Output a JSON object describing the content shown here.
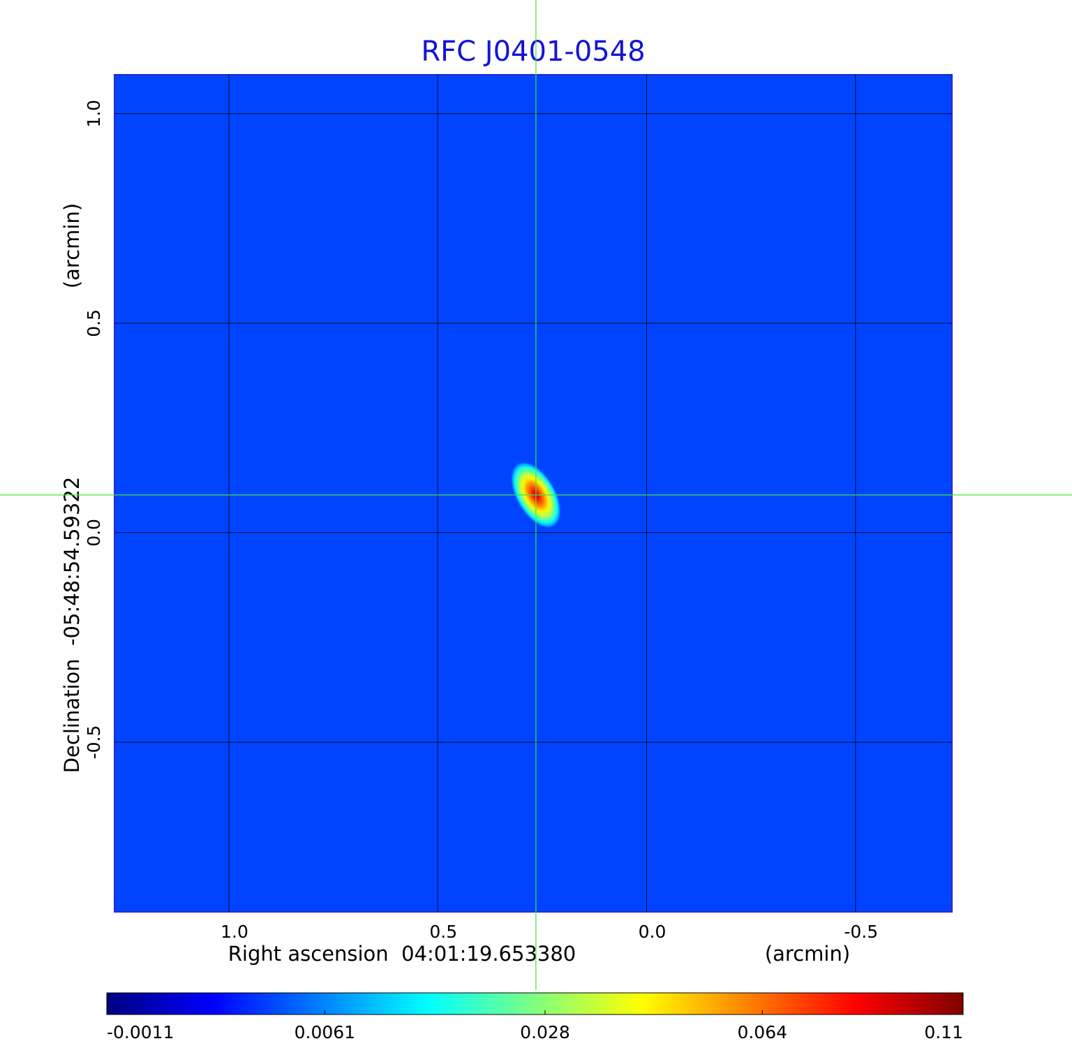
{
  "chart_data": {
    "type": "image",
    "title": "RFC J0401-0548",
    "x_label": "Right ascension  04:01:19.653380",
    "x_unit": "(arcmin)",
    "y_label": "Declination  -05:48:54.59322",
    "y_unit": "(arcmin)",
    "xlim": [
      1.274,
      -0.731
    ],
    "ylim": [
      -0.905,
      1.093
    ],
    "xticks": [
      {
        "value": 1.0,
        "label": "1.0"
      },
      0.5,
      {
        "value": 0.0,
        "label": "0.0"
      },
      -0.5
    ],
    "yticks": [
      {
        "value": 1.0,
        "label": "1.0"
      },
      0.5,
      {
        "value": 0.0,
        "label": "0.0"
      },
      -0.5
    ],
    "grid": true,
    "background": 0.003,
    "source": {
      "x": 0.265,
      "y": 0.09,
      "peak": 0.1
    },
    "crosshair": {
      "x": 0.265,
      "y": 0.09
    },
    "colormap": "jet",
    "color_scale": "sqrt",
    "clim": [
      -0.0011,
      0.11
    ],
    "cticks": [
      -0.0011,
      0.0061,
      0.028,
      0.064,
      0.11
    ]
  }
}
